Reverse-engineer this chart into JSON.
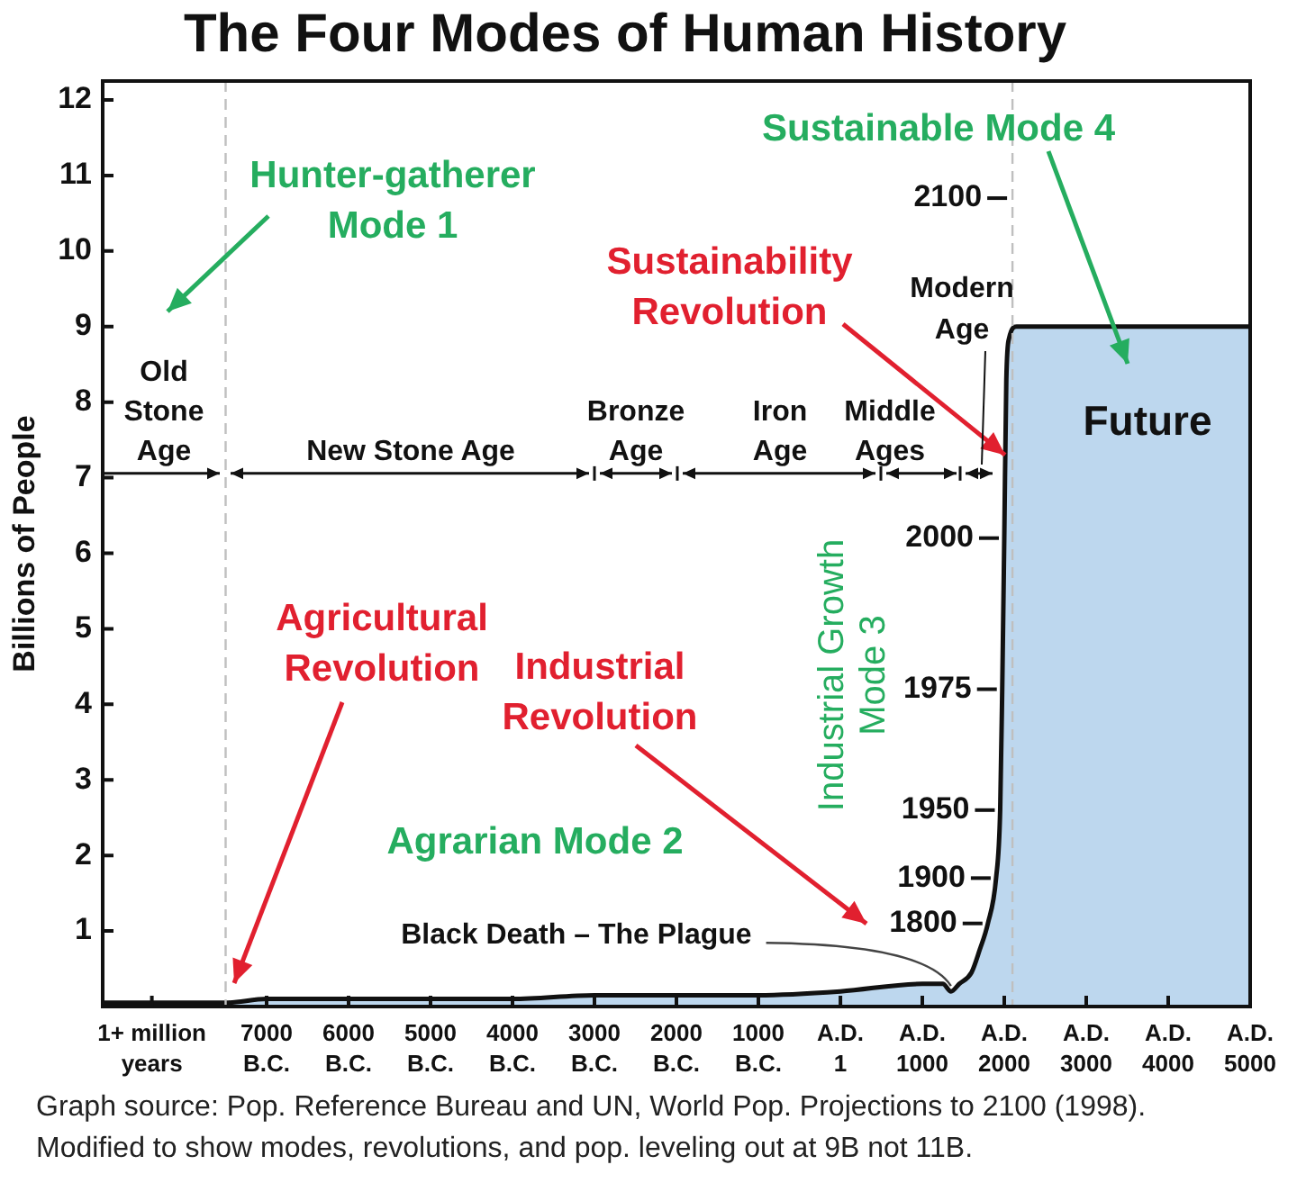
{
  "chart_data": {
    "type": "area",
    "title": "The Four Modes of Human History",
    "ylabel": "Billions of People",
    "x": [
      -9000,
      -7500,
      -7000,
      -6000,
      -5000,
      -4000,
      -3000,
      -2000,
      -1000,
      1,
      1000,
      1250,
      1350,
      1450,
      1600,
      1700,
      1800,
      1900,
      1950,
      1975,
      2000,
      2025,
      2060,
      2150,
      5000
    ],
    "values": [
      0.05,
      0.05,
      0.1,
      0.1,
      0.1,
      0.1,
      0.15,
      0.15,
      0.15,
      0.2,
      0.3,
      0.3,
      0.2,
      0.3,
      0.45,
      0.75,
      1.1,
      1.7,
      2.6,
      4.2,
      6.2,
      8.3,
      8.85,
      9,
      9
    ],
    "color": "#bdd7ee",
    "xlim": [
      -9000,
      5000
    ],
    "xticks": [
      {
        "value": -8400,
        "label": "1+ million years"
      },
      {
        "value": -7000,
        "label": "7000 B.C."
      },
      {
        "value": -6000,
        "label": "6000 B.C."
      },
      {
        "value": -5000,
        "label": "5000 B.C."
      },
      {
        "value": -4000,
        "label": "4000 B.C."
      },
      {
        "value": -3000,
        "label": "3000 B.C."
      },
      {
        "value": -2000,
        "label": "2000 B.C."
      },
      {
        "value": -1000,
        "label": "1000 B.C."
      },
      {
        "value": 1,
        "label": "A.D. 1"
      },
      {
        "value": 1000,
        "label": "A.D. 1000"
      },
      {
        "value": 2000,
        "label": "A.D. 2000"
      },
      {
        "value": 3000,
        "label": "A.D. 3000"
      },
      {
        "value": 4000,
        "label": "A.D. 4000"
      },
      {
        "value": 5000,
        "label": "A.D. 5000"
      }
    ],
    "ylim": [
      0,
      12.25
    ],
    "yticks": [
      1,
      2,
      3,
      4,
      5,
      6,
      7,
      8,
      9,
      10,
      11,
      12
    ],
    "ref_lines": [
      {
        "axis": "x",
        "value": -7500,
        "color": "#bfbfbf",
        "line_style": "dashed"
      },
      {
        "axis": "x",
        "value": 2100,
        "color": "#bfbfbf",
        "line_style": "dashed"
      }
    ],
    "annotations": [
      "Hunter-gatherer\nMode 1",
      "Sustainable Mode 4",
      {
        "text": "Sustainability\nRevolution",
        "x": 2010,
        "y": 7.3
      },
      "Old\nStone\nAge",
      "New Stone Age",
      "Bronze\nAge",
      "Iron\nAge",
      "Middle\nAges",
      "Modern\nAge",
      "Agricultural\nRevolution",
      "Industrial\nRevolution",
      {
        "text": "Black Death – The Plague",
        "x": 1350,
        "y": 0.2
      },
      "Agrarian Mode 2",
      "Industrial Growth\nMode 3",
      "Future",
      {
        "text": "2100",
        "x": 2100,
        "y": 10.7
      },
      {
        "text": "2000",
        "x": 2000,
        "y": 6.2
      },
      {
        "text": "1975",
        "x": 1975,
        "y": 4.2
      },
      {
        "text": "1950",
        "x": 1950,
        "y": 2.6
      },
      {
        "text": "1900",
        "x": 1900,
        "y": 1.7
      },
      {
        "text": "1800",
        "x": 1800,
        "y": 1.1
      },
      "Graph source: Pop. Reference Bureau and UN, World Pop. Projections to 2100 (1998).",
      "Modified to show modes, revolutions, and pop. leveling out at 9B not 11B."
    ]
  }
}
